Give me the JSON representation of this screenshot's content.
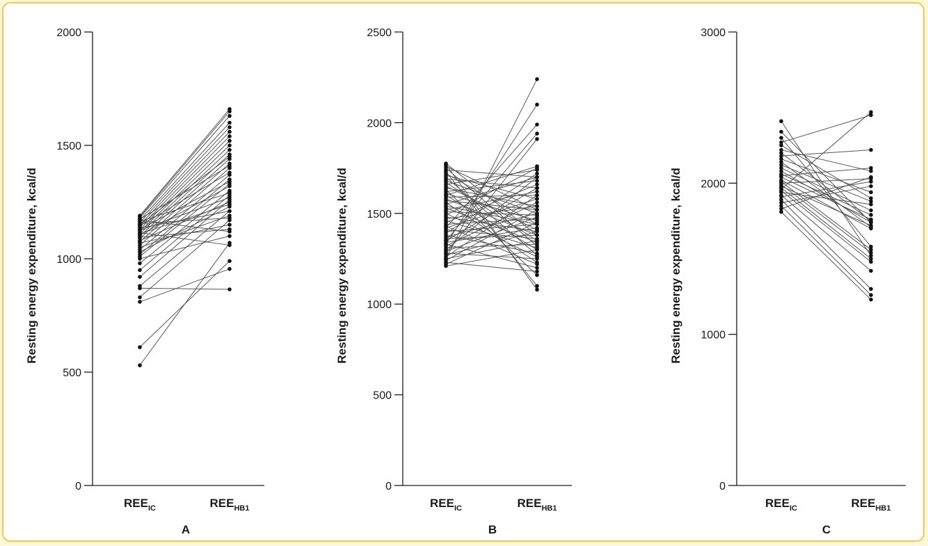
{
  "chart_data": [
    {
      "type": "line",
      "panel": "A",
      "ylabel": "Resting energy expenditure, kcal/d",
      "ylim": [
        0,
        2000
      ],
      "yticks": [
        0,
        500,
        1000,
        1500,
        2000
      ],
      "categories": [
        {
          "main": "REE",
          "sub": "IC"
        },
        {
          "main": "REE",
          "sub": "HB1"
        }
      ],
      "pairs": [
        [
          530,
          1070
        ],
        [
          610,
          990
        ],
        [
          810,
          955
        ],
        [
          830,
          1170
        ],
        [
          870,
          865
        ],
        [
          880,
          1210
        ],
        [
          920,
          1260
        ],
        [
          950,
          1280
        ],
        [
          980,
          1300
        ],
        [
          1000,
          1100
        ],
        [
          1010,
          1330
        ],
        [
          1020,
          1350
        ],
        [
          1030,
          1230
        ],
        [
          1040,
          1370
        ],
        [
          1050,
          1190
        ],
        [
          1060,
          1400
        ],
        [
          1070,
          1150
        ],
        [
          1075,
          1420
        ],
        [
          1080,
          1250
        ],
        [
          1090,
          1440
        ],
        [
          1095,
          1130
        ],
        [
          1100,
          1460
        ],
        [
          1105,
          1320
        ],
        [
          1110,
          1480
        ],
        [
          1115,
          1060
        ],
        [
          1120,
          1500
        ],
        [
          1125,
          1270
        ],
        [
          1130,
          1520
        ],
        [
          1135,
          1210
        ],
        [
          1140,
          1540
        ],
        [
          1145,
          1380
        ],
        [
          1150,
          1560
        ],
        [
          1155,
          1180
        ],
        [
          1160,
          1580
        ],
        [
          1165,
          1290
        ],
        [
          1170,
          1600
        ],
        [
          1175,
          1410
        ],
        [
          1180,
          1630
        ],
        [
          1185,
          1650
        ],
        [
          1190,
          1660
        ],
        [
          1110,
          1240
        ],
        [
          1130,
          1340
        ],
        [
          1150,
          1450
        ],
        [
          1170,
          1120
        ]
      ]
    },
    {
      "type": "line",
      "panel": "B",
      "ylabel": "Resting energy expenditure, kcal/d",
      "ylim": [
        0,
        2500
      ],
      "yticks": [
        0,
        500,
        1000,
        1500,
        2000,
        2500
      ],
      "categories": [
        {
          "main": "REE",
          "sub": "IC"
        },
        {
          "main": "REE",
          "sub": "HB1"
        }
      ],
      "pairs": [
        [
          1210,
          1300
        ],
        [
          1220,
          1450
        ],
        [
          1230,
          1180
        ],
        [
          1240,
          1520
        ],
        [
          1250,
          1350
        ],
        [
          1260,
          1600
        ],
        [
          1270,
          1400
        ],
        [
          1280,
          1250
        ],
        [
          1290,
          1480
        ],
        [
          1300,
          1700
        ],
        [
          1310,
          1330
        ],
        [
          1320,
          1560
        ],
        [
          1330,
          1200
        ],
        [
          1340,
          1420
        ],
        [
          1350,
          1640
        ],
        [
          1360,
          1380
        ],
        [
          1370,
          1500
        ],
        [
          1380,
          1280
        ],
        [
          1390,
          1720
        ],
        [
          1400,
          1440
        ],
        [
          1410,
          1360
        ],
        [
          1420,
          1580
        ],
        [
          1430,
          1220
        ],
        [
          1440,
          1470
        ],
        [
          1450,
          1660
        ],
        [
          1460,
          1310
        ],
        [
          1470,
          1540
        ],
        [
          1480,
          1400
        ],
        [
          1490,
          1750
        ],
        [
          1500,
          1260
        ],
        [
          1510,
          1490
        ],
        [
          1520,
          1620
        ],
        [
          1530,
          1340
        ],
        [
          1540,
          1440
        ],
        [
          1550,
          1700
        ],
        [
          1560,
          1230
        ],
        [
          1570,
          1520
        ],
        [
          1580,
          1380
        ],
        [
          1590,
          1600
        ],
        [
          1600,
          1300
        ],
        [
          1610,
          1460
        ],
        [
          1620,
          1680
        ],
        [
          1630,
          1160
        ],
        [
          1640,
          1540
        ],
        [
          1650,
          1410
        ],
        [
          1660,
          1740
        ],
        [
          1670,
          1350
        ],
        [
          1680,
          1500
        ],
        [
          1690,
          1640
        ],
        [
          1700,
          1270
        ],
        [
          1710,
          1580
        ],
        [
          1720,
          1440
        ],
        [
          1730,
          1100
        ],
        [
          1740,
          1700
        ],
        [
          1750,
          1320
        ],
        [
          1760,
          1520
        ],
        [
          1770,
          1080
        ],
        [
          1775,
          1380
        ],
        [
          1280,
          1910
        ],
        [
          1350,
          1940
        ],
        [
          1420,
          1990
        ],
        [
          1330,
          2100
        ],
        [
          1250,
          2240
        ],
        [
          1600,
          1760
        ]
      ]
    },
    {
      "type": "line",
      "panel": "C",
      "ylabel": "Resting energy expenditure, kcal/d",
      "ylim": [
        0,
        3000
      ],
      "yticks": [
        0,
        1000,
        2000,
        3000
      ],
      "categories": [
        {
          "main": "REE",
          "sub": "IC"
        },
        {
          "main": "REE",
          "sub": "HB1"
        }
      ],
      "pairs": [
        [
          1810,
          1230
        ],
        [
          1830,
          2040
        ],
        [
          1850,
          1260
        ],
        [
          1870,
          1980
        ],
        [
          1890,
          1300
        ],
        [
          1910,
          2010
        ],
        [
          1920,
          1420
        ],
        [
          1940,
          1860
        ],
        [
          1950,
          1480
        ],
        [
          1960,
          2470
        ],
        [
          1970,
          1500
        ],
        [
          1980,
          1720
        ],
        [
          1990,
          1540
        ],
        [
          2000,
          2030
        ],
        [
          2010,
          1560
        ],
        [
          2020,
          1700
        ],
        [
          2040,
          1760
        ],
        [
          2050,
          2100
        ],
        [
          2060,
          1790
        ],
        [
          2080,
          1740
        ],
        [
          2100,
          1820
        ],
        [
          2120,
          1880
        ],
        [
          2140,
          1710
        ],
        [
          2160,
          1940
        ],
        [
          2180,
          2220
        ],
        [
          2200,
          1750
        ],
        [
          2220,
          2080
        ],
        [
          2250,
          1900
        ],
        [
          2270,
          2450
        ],
        [
          2300,
          1580
        ],
        [
          2340,
          1740
        ],
        [
          2410,
          1520
        ]
      ]
    }
  ]
}
